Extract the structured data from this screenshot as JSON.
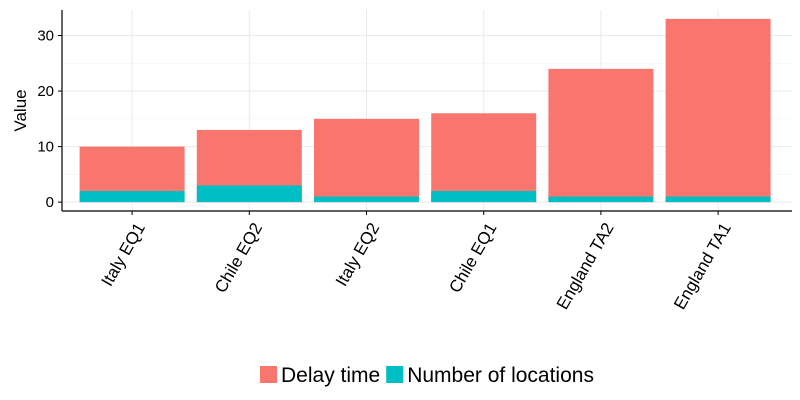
{
  "chart_data": {
    "type": "bar",
    "stacked": false,
    "overlaid": true,
    "categories": [
      "Italy EQ1",
      "Chile EQ2",
      "Italy EQ2",
      "Chile EQ1",
      "England TA2",
      "England TA1"
    ],
    "series": [
      {
        "name": "Delay time",
        "values": [
          10,
          13,
          15,
          16,
          24,
          33
        ],
        "color": "#f8766d"
      },
      {
        "name": "Number of locations",
        "values": [
          2,
          3,
          1,
          2,
          1,
          1
        ],
        "color": "#00bfc4"
      }
    ],
    "title": "",
    "xlabel": "",
    "ylabel": "Value",
    "ylim": [
      -1.6,
      34.6
    ],
    "yticks": [
      0,
      10,
      20,
      30
    ],
    "grid": true,
    "legend_position": "bottom",
    "colors": {
      "grid": "#ebebeb",
      "axis": "#000000"
    }
  }
}
